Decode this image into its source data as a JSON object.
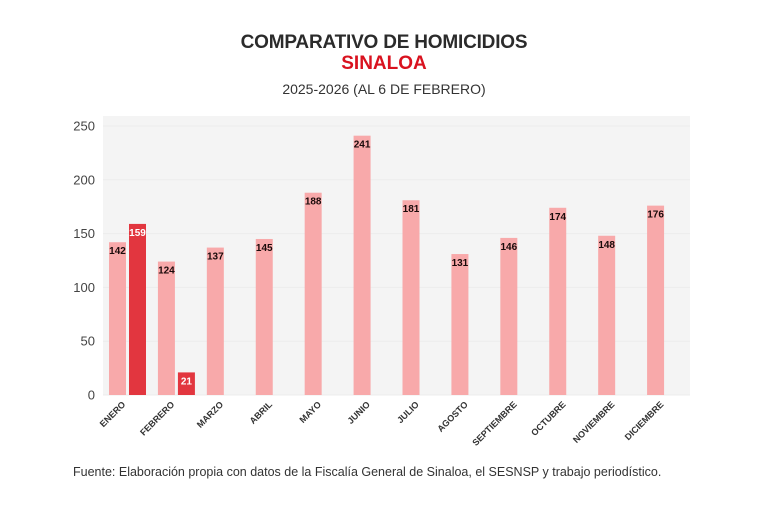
{
  "header": {
    "title": "COMPARATIVO DE HOMICIDIOS",
    "subtitle": "SINALOA",
    "period": "2025-2026 (AL 6 DE FEBRERO)"
  },
  "footer": {
    "source": "Fuente: Elaboración propia con datos de la Fiscalía General de Sinaloa, el SESNSP y trabajo periodístico."
  },
  "colors": {
    "series_2025": "#f8a9aa",
    "series_2026": "#e2363f",
    "plot_bg": "#f4f4f4",
    "label_dark": "#1a0a0a",
    "label_light": "#ffffff"
  },
  "chart_data": {
    "type": "bar",
    "title": "COMPARATIVO DE HOMICIDIOS",
    "subtitle": "SINALOA — 2025-2026 (AL 6 DE FEBRERO)",
    "xlabel": "",
    "ylabel": "",
    "ylim": [
      0,
      250
    ],
    "yticks": [
      0,
      50,
      100,
      150,
      200,
      250
    ],
    "grid": true,
    "legend": "none",
    "categories": [
      "ENERO",
      "FEBRERO",
      "MARZO",
      "ABRIL",
      "MAYO",
      "JUNIO",
      "JULIO",
      "AGOSTO",
      "SEPTIEMBRE",
      "OCTUBRE",
      "NOVIEMBRE",
      "DICIEMBRE"
    ],
    "series": [
      {
        "name": "2025",
        "color": "#f8a9aa",
        "values": [
          142,
          124,
          137,
          145,
          188,
          241,
          181,
          131,
          146,
          174,
          148,
          176
        ]
      },
      {
        "name": "2026",
        "color": "#e2363f",
        "values": [
          159,
          21,
          null,
          null,
          null,
          null,
          null,
          null,
          null,
          null,
          null,
          null
        ]
      }
    ]
  }
}
